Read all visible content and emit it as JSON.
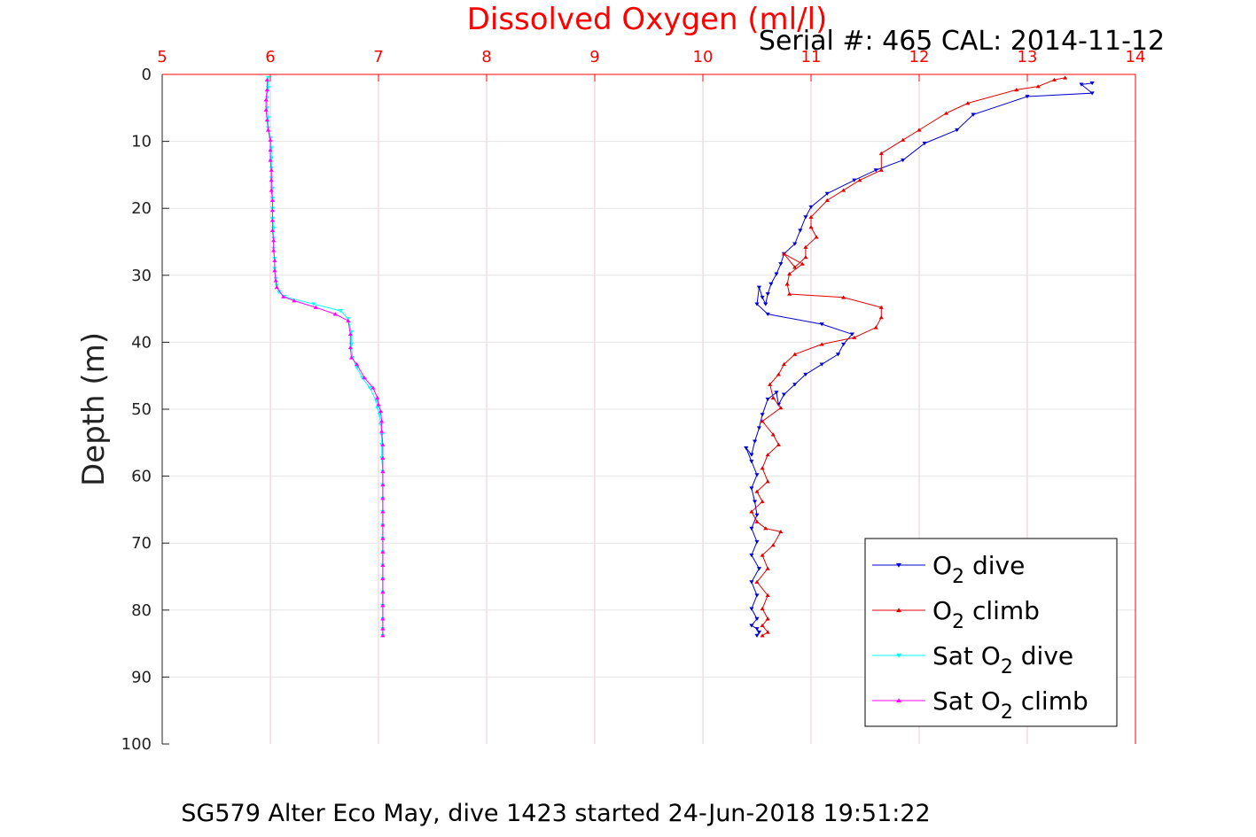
{
  "chart_data": {
    "type": "line",
    "title": "Dissolved Oxygen (ml/l)",
    "subtitle": "Serial #: 465  CAL: 2014-11-12",
    "footer": "SG579 Alter Eco May, dive 1423 started 24-Jun-2018 19:51:22",
    "ylabel": "Depth (m)",
    "xlim": [
      5,
      14
    ],
    "ylim": [
      0,
      100
    ],
    "y_reversed": true,
    "x_axis_position": "top",
    "xticks": [
      "5",
      "6",
      "7",
      "8",
      "9",
      "10",
      "11",
      "12",
      "13",
      "14"
    ],
    "yticks": [
      "0",
      "10",
      "20",
      "30",
      "40",
      "50",
      "60",
      "70",
      "80",
      "90",
      "100"
    ],
    "grid": true,
    "legend_position": "bottom-right",
    "colors": {
      "title": "#ff0000",
      "x_axis": "#ff0000",
      "grid": "#f0c8d0"
    },
    "series": [
      {
        "name": "O2 dive",
        "legend_main": "O",
        "legend_sub": "2",
        "legend_pre": "",
        "legend_post": " dive",
        "color": "#0000d0",
        "marker": "down",
        "x": [
          13.6,
          13.5,
          13.6,
          13.0,
          12.5,
          12.35,
          12.05,
          11.85,
          11.6,
          11.4,
          11.15,
          11.0,
          10.95,
          10.9,
          10.85,
          10.75,
          10.72,
          10.68,
          10.63,
          10.6,
          10.58,
          10.55,
          10.52,
          10.5,
          10.6,
          11.1,
          11.38,
          11.3,
          11.25,
          11.1,
          10.95,
          10.85,
          10.75,
          10.7,
          10.68,
          10.6,
          10.55,
          10.52,
          10.48,
          10.45,
          10.4,
          10.45,
          10.5,
          10.45,
          10.48,
          10.5,
          10.45,
          10.5,
          10.45,
          10.52,
          10.45,
          10.5,
          10.45,
          10.5,
          10.45,
          10.5,
          10.52,
          10.5
        ],
        "y": [
          1.3,
          1.5,
          2.8,
          3.3,
          6.0,
          8.3,
          10.3,
          12.8,
          14.3,
          15.8,
          17.8,
          19.8,
          21.3,
          23.3,
          25.3,
          26.8,
          28.3,
          29.8,
          31.3,
          32.8,
          34.3,
          33.3,
          31.8,
          34.3,
          35.8,
          37.3,
          38.8,
          40.3,
          41.8,
          43.3,
          44.8,
          46.3,
          47.8,
          49.3,
          47.5,
          48.5,
          50.8,
          52.8,
          54.8,
          56.8,
          55.8,
          57.8,
          59.8,
          61.8,
          63.8,
          65.8,
          67.8,
          69.8,
          71.8,
          73.8,
          75.8,
          77.8,
          79.8,
          81.3,
          82.3,
          82.8,
          83.3,
          83.8
        ]
      },
      {
        "name": "O2 climb",
        "legend_main": "O",
        "legend_sub": "2",
        "legend_pre": "",
        "legend_post": " climb",
        "color": "#e00000",
        "marker": "up",
        "x": [
          13.35,
          13.25,
          13.1,
          12.9,
          12.45,
          12.25,
          12.0,
          11.85,
          11.65,
          11.65,
          11.45,
          11.3,
          11.15,
          11.0,
          11.0,
          11.05,
          10.95,
          10.95,
          10.85,
          10.75,
          10.92,
          10.8,
          10.78,
          10.8,
          11.3,
          11.65,
          11.65,
          11.6,
          11.4,
          11.1,
          10.85,
          10.75,
          10.7,
          10.62,
          10.65,
          10.72,
          10.55,
          10.65,
          10.7,
          10.6,
          10.55,
          10.6,
          10.5,
          10.55,
          10.45,
          10.5,
          10.58,
          10.72,
          10.65,
          10.55,
          10.6,
          10.5,
          10.6,
          10.55,
          10.6,
          10.55,
          10.6,
          10.55
        ],
        "y": [
          0.5,
          0.8,
          1.8,
          2.3,
          4.3,
          5.8,
          8.3,
          9.8,
          11.8,
          14.3,
          15.8,
          17.3,
          18.8,
          21.3,
          22.8,
          24.3,
          25.8,
          27.3,
          28.8,
          26.8,
          28.3,
          29.8,
          31.3,
          32.8,
          33.3,
          34.8,
          36.3,
          37.8,
          39.3,
          40.3,
          41.8,
          43.3,
          44.8,
          46.3,
          48.3,
          49.8,
          51.8,
          53.8,
          55.3,
          56.8,
          58.8,
          60.8,
          62.3,
          63.8,
          65.3,
          66.8,
          67.8,
          68.3,
          70.3,
          71.8,
          73.8,
          75.8,
          77.8,
          79.8,
          81.3,
          82.3,
          83.3,
          83.8
        ]
      },
      {
        "name": "Sat O2 dive",
        "legend_main": "Sat O",
        "legend_sub": "2",
        "legend_pre": "",
        "legend_post": " dive",
        "color": "#00ffff",
        "marker": "down",
        "x": [
          5.98,
          5.98,
          5.97,
          5.97,
          5.98,
          5.98,
          6.0,
          6.01,
          6.01,
          6.01,
          6.01,
          6.02,
          6.02,
          6.02,
          6.02,
          6.03,
          6.03,
          6.03,
          6.04,
          6.04,
          6.05,
          6.06,
          6.08,
          6.13,
          6.4,
          6.65,
          6.72,
          6.75,
          6.75,
          6.76,
          6.8,
          6.85,
          6.92,
          6.98,
          6.99,
          7.01,
          7.02,
          7.03,
          7.03,
          7.03,
          7.04,
          7.04,
          7.04,
          7.04,
          7.04,
          7.04,
          7.04,
          7.04,
          7.04,
          7.04,
          7.04,
          7.04,
          7.04,
          7.04
        ],
        "y": [
          0.5,
          2,
          3.5,
          5,
          6.5,
          8,
          9.5,
          11,
          12.5,
          14,
          15.5,
          17,
          18.5,
          20,
          21.5,
          23,
          24.5,
          26,
          27.5,
          29,
          30.5,
          31.5,
          32.5,
          33.2,
          34.3,
          35.3,
          36.5,
          38.5,
          40.3,
          42.3,
          43.8,
          45.3,
          46.8,
          48.8,
          49.8,
          50.8,
          52.3,
          53.8,
          55.3,
          57.3,
          59.3,
          61.3,
          63.3,
          65.3,
          67.3,
          69.3,
          71.3,
          73.3,
          75.3,
          77.3,
          79.3,
          81.3,
          82.8,
          83.8
        ]
      },
      {
        "name": "Sat O2 climb",
        "legend_main": "Sat O",
        "legend_sub": "2",
        "legend_pre": "",
        "legend_post": " climb",
        "color": "#ff00ff",
        "marker": "up",
        "x": [
          5.97,
          5.97,
          5.96,
          5.96,
          5.97,
          5.98,
          6.0,
          6.0,
          6.0,
          6.01,
          6.01,
          6.01,
          6.02,
          6.02,
          6.02,
          6.02,
          6.03,
          6.03,
          6.04,
          6.04,
          6.05,
          6.06,
          6.12,
          6.22,
          6.42,
          6.6,
          6.72,
          6.74,
          6.74,
          6.75,
          6.8,
          6.87,
          6.95,
          6.99,
          7.0,
          7.02,
          7.03,
          7.03,
          7.04,
          7.04,
          7.04,
          7.04,
          7.04,
          7.04,
          7.04,
          7.04,
          7.04,
          7.04,
          7.04,
          7.04,
          7.04,
          7.04,
          7.04,
          7.04
        ],
        "y": [
          0.8,
          2.3,
          3.8,
          5.3,
          6.8,
          8.3,
          9.8,
          11.3,
          12.8,
          14.3,
          15.8,
          17.3,
          18.8,
          20.3,
          21.8,
          23.3,
          24.8,
          26.3,
          27.8,
          29.3,
          30.8,
          31.8,
          33.2,
          33.8,
          34.8,
          35.8,
          36.8,
          38.8,
          40.8,
          42.3,
          43.3,
          45.3,
          46.8,
          48.3,
          49.3,
          50.3,
          51.8,
          53.3,
          55.3,
          57.3,
          59.3,
          61.3,
          63.3,
          65.3,
          67.3,
          69.3,
          71.3,
          73.3,
          75.3,
          77.3,
          79.3,
          81.3,
          82.8,
          83.8
        ]
      }
    ]
  }
}
